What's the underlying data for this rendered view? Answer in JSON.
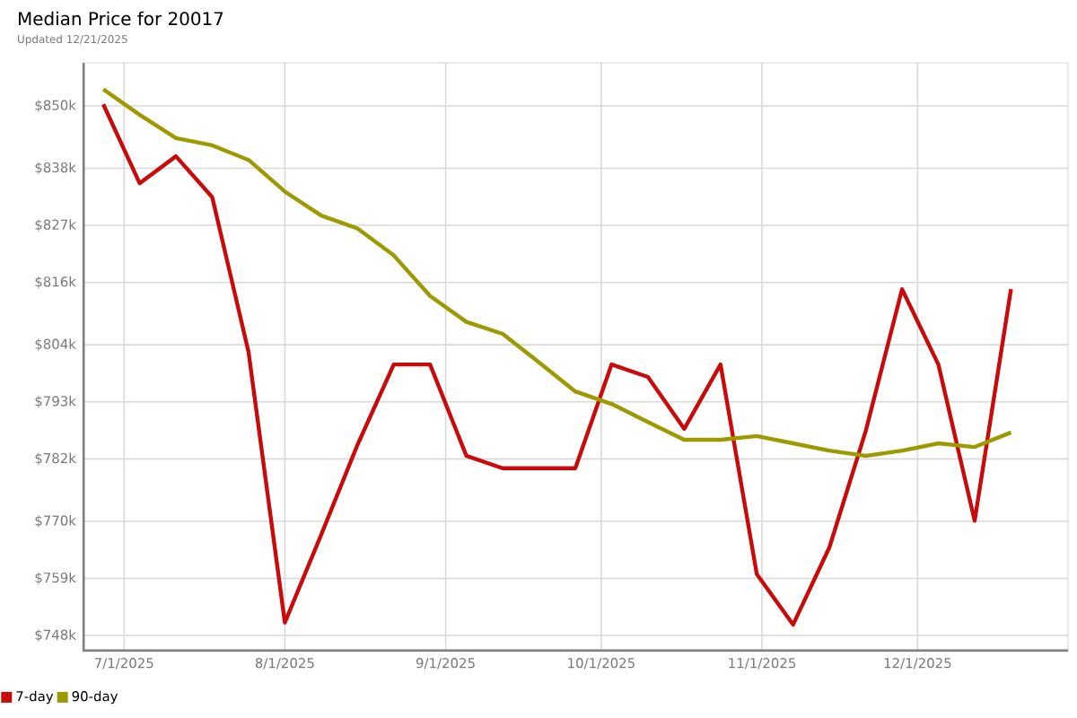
{
  "chart_data": {
    "type": "line",
    "title": "Median Price for 20017",
    "subtitle": "Updated 12/21/2025",
    "x": [
      "2025-06-27",
      "2025-07-04",
      "2025-07-11",
      "2025-07-18",
      "2025-07-25",
      "2025-08-01",
      "2025-08-08",
      "2025-08-15",
      "2025-08-22",
      "2025-08-29",
      "2025-09-05",
      "2025-09-12",
      "2025-09-19",
      "2025-09-26",
      "2025-10-03",
      "2025-10-10",
      "2025-10-17",
      "2025-10-24",
      "2025-10-31",
      "2025-11-07",
      "2025-11-14",
      "2025-11-21",
      "2025-11-28",
      "2025-12-05",
      "2025-12-12",
      "2025-12-19"
    ],
    "series": [
      {
        "name": "7-day",
        "color": "#c80a0a",
        "values": [
          850.3,
          835.1,
          840.3,
          832.4,
          802.6,
          750.5,
          767.4,
          784.7,
          800.2,
          800.2,
          782.6,
          780.2,
          780.2,
          780.2,
          800.2,
          797.8,
          787.8,
          800.2,
          759.8,
          750.1,
          765.0,
          787.4,
          814.7,
          800.2,
          770.1,
          814.7
        ]
      },
      {
        "name": "90-day",
        "color": "#9c9a00",
        "values": [
          853.2,
          848.3,
          843.8,
          842.4,
          839.6,
          833.5,
          828.9,
          826.4,
          821.2,
          813.4,
          808.4,
          806.1,
          800.6,
          795.0,
          792.6,
          789.1,
          785.7,
          785.7,
          786.4,
          785.0,
          783.6,
          782.6,
          783.6,
          785.0,
          784.3,
          787.1
        ]
      }
    ],
    "xlim": [
      "2025-06-23",
      "2025-12-30"
    ],
    "xticks": [
      {
        "value": "2025-07-01",
        "label": "7/1/2025"
      },
      {
        "value": "2025-08-01",
        "label": "8/1/2025"
      },
      {
        "value": "2025-09-01",
        "label": "9/1/2025"
      },
      {
        "value": "2025-10-01",
        "label": "10/1/2025"
      },
      {
        "value": "2025-11-01",
        "label": "11/1/2025"
      },
      {
        "value": "2025-12-01",
        "label": "12/1/2025"
      }
    ],
    "ylim": [
      744.9,
      858.3
    ],
    "yticks": [
      {
        "value": 748,
        "label": "$748k"
      },
      {
        "value": 759,
        "label": "$759k"
      },
      {
        "value": 770,
        "label": "$770k"
      },
      {
        "value": 782,
        "label": "$782k"
      },
      {
        "value": 793,
        "label": "$793k"
      },
      {
        "value": 804,
        "label": "$804k"
      },
      {
        "value": 816,
        "label": "$816k"
      },
      {
        "value": 827,
        "label": "$827k"
      },
      {
        "value": 838,
        "label": "$838k"
      },
      {
        "value": 850,
        "label": "$850k"
      }
    ],
    "grid": true,
    "legend": "bottom left",
    "marker": "none",
    "line_style": "solid"
  }
}
